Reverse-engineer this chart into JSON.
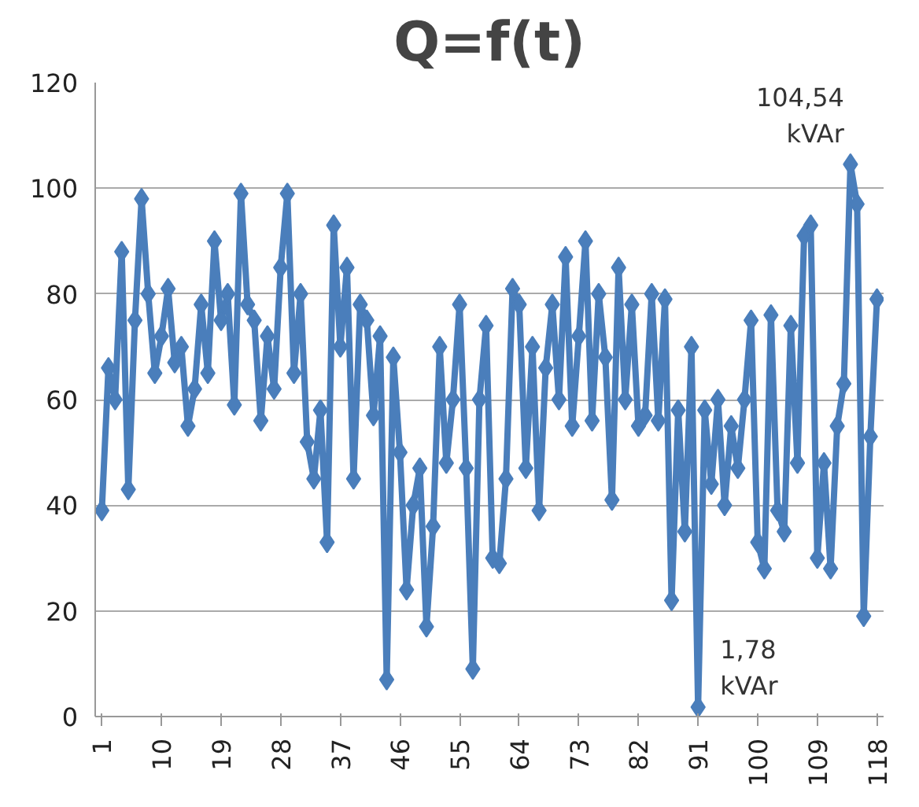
{
  "chart_data": {
    "type": "line",
    "title": "Q=f(t)",
    "x": [
      1,
      2,
      3,
      4,
      5,
      6,
      7,
      8,
      9,
      10,
      11,
      12,
      13,
      14,
      15,
      16,
      17,
      18,
      19,
      20,
      21,
      22,
      23,
      24,
      25,
      26,
      27,
      28,
      29,
      30,
      31,
      32,
      33,
      34,
      35,
      36,
      37,
      38,
      39,
      40,
      41,
      42,
      43,
      44,
      45,
      46,
      47,
      48,
      49,
      50,
      51,
      52,
      53,
      54,
      55,
      56,
      57,
      58,
      59,
      60,
      61,
      62,
      63,
      64,
      65,
      66,
      67,
      68,
      69,
      70,
      71,
      72,
      73,
      74,
      75,
      76,
      77,
      78,
      79,
      80,
      81,
      82,
      83,
      84,
      85,
      86,
      87,
      88,
      89,
      90,
      91,
      92,
      93,
      94,
      95,
      96,
      97,
      98,
      99,
      100,
      101,
      102,
      103,
      104,
      105,
      106,
      107,
      108,
      109,
      110,
      111,
      112,
      113,
      114,
      115,
      116,
      117,
      118
    ],
    "series": [
      {
        "color": "#4a7ebb",
        "values": [
          39,
          66,
          60,
          88,
          43,
          75,
          98,
          80,
          65,
          72,
          81,
          67,
          70,
          55,
          62,
          78,
          65,
          90,
          75,
          80,
          59,
          99,
          78,
          75,
          56,
          72,
          62,
          85,
          99,
          65,
          80,
          52,
          45,
          58,
          33,
          93,
          70,
          85,
          45,
          78,
          75,
          57,
          72,
          7,
          68,
          50,
          24,
          40,
          47,
          17,
          36,
          70,
          48,
          60,
          78,
          47,
          9,
          60,
          74,
          30,
          29,
          45,
          81,
          78,
          47,
          70,
          39,
          66,
          78,
          60,
          87,
          55,
          72,
          90,
          56,
          80,
          68,
          41,
          85,
          60,
          78,
          55,
          57,
          80,
          56,
          79,
          22,
          58,
          35,
          70,
          1.78,
          58,
          44,
          60,
          40,
          55,
          47,
          60,
          75,
          33,
          28,
          76,
          39,
          35,
          74,
          48,
          91,
          93,
          30,
          48,
          28,
          55,
          63,
          104.54,
          97,
          19,
          53,
          79
        ]
      }
    ],
    "xlim": [
      0,
      119
    ],
    "xticks": [
      1,
      10,
      19,
      28,
      37,
      46,
      55,
      64,
      73,
      82,
      91,
      100,
      109,
      118
    ],
    "ylim": [
      0,
      120
    ],
    "yticks": [
      0,
      20,
      40,
      60,
      80,
      100,
      120
    ],
    "grid": "y",
    "marker": "diamond",
    "line_style": "solid",
    "annotations": [
      {
        "text": "104,54\nkVAr",
        "x": 114,
        "y": 104.54
      },
      {
        "text": "1,78\nkVAr",
        "x": 91,
        "y": 1.78
      }
    ]
  }
}
